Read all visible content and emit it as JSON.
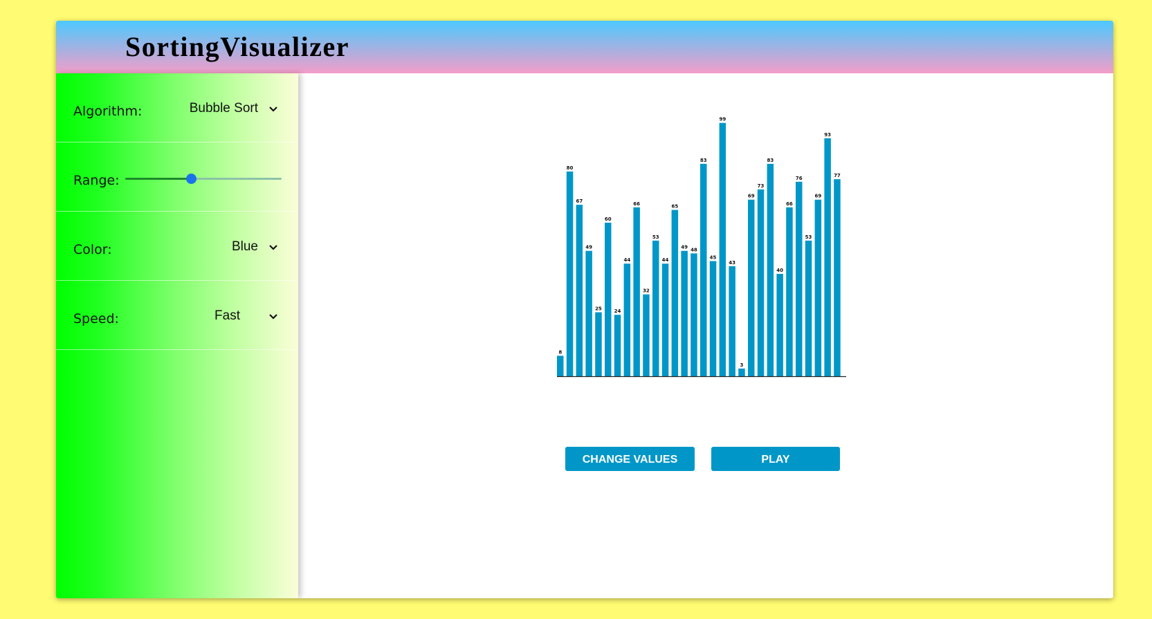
{
  "header": {
    "title": "SortingVisualizer"
  },
  "sidebar": {
    "algorithm": {
      "label": "Algorithm:",
      "value": "Bubble Sort"
    },
    "range": {
      "label": "Range:",
      "fraction": 0.42
    },
    "color": {
      "label": "Color:",
      "value": "Blue"
    },
    "speed": {
      "label": "Speed:",
      "value": "Fast"
    }
  },
  "buttons": {
    "change": "CHANGE VALUES",
    "play": "PLAY"
  },
  "colors": {
    "bar": "#0097c8",
    "accent": "#1a73e8"
  },
  "chart_data": {
    "type": "bar",
    "values": [
      8,
      80,
      67,
      49,
      25,
      60,
      24,
      44,
      66,
      32,
      53,
      44,
      65,
      49,
      48,
      83,
      45,
      99,
      43,
      3,
      69,
      73,
      83,
      40,
      66,
      76,
      53,
      69,
      93,
      77
    ],
    "ylim": [
      0,
      100
    ],
    "grid": false,
    "legend": "none"
  }
}
